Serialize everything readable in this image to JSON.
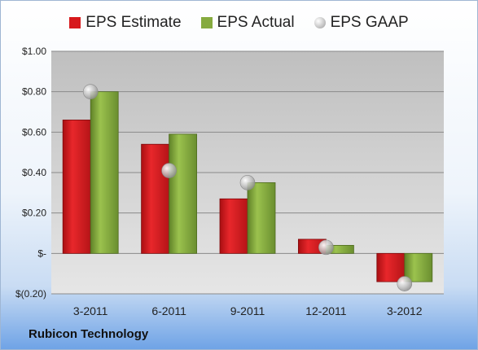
{
  "company": "Rubicon Technology",
  "chart_data": {
    "type": "bar",
    "categories": [
      "3-2011",
      "6-2011",
      "9-2011",
      "12-2011",
      "3-2012"
    ],
    "series": [
      {
        "name": "EPS Estimate",
        "values": [
          0.66,
          0.54,
          0.27,
          0.07,
          -0.14
        ],
        "color": "#d7191c"
      },
      {
        "name": "EPS Actual",
        "values": [
          0.8,
          0.59,
          0.35,
          0.04,
          -0.14
        ],
        "color": "#86ab3f"
      },
      {
        "name": "EPS GAAP",
        "values": [
          0.8,
          0.41,
          0.35,
          0.03,
          -0.15
        ],
        "color": "#b8b8b8",
        "marker": "sphere"
      }
    ],
    "ylim": [
      -0.2,
      1.0
    ],
    "yticks": [
      {
        "value": 1.0,
        "label": "$1.00"
      },
      {
        "value": 0.8,
        "label": "$0.80"
      },
      {
        "value": 0.6,
        "label": "$0.60"
      },
      {
        "value": 0.4,
        "label": "$0.40"
      },
      {
        "value": 0.2,
        "label": "$0.20"
      },
      {
        "value": 0.0,
        "label": "$-"
      },
      {
        "value": -0.2,
        "label": "$(0.20)"
      }
    ],
    "grid": true,
    "legend_position": "top"
  }
}
